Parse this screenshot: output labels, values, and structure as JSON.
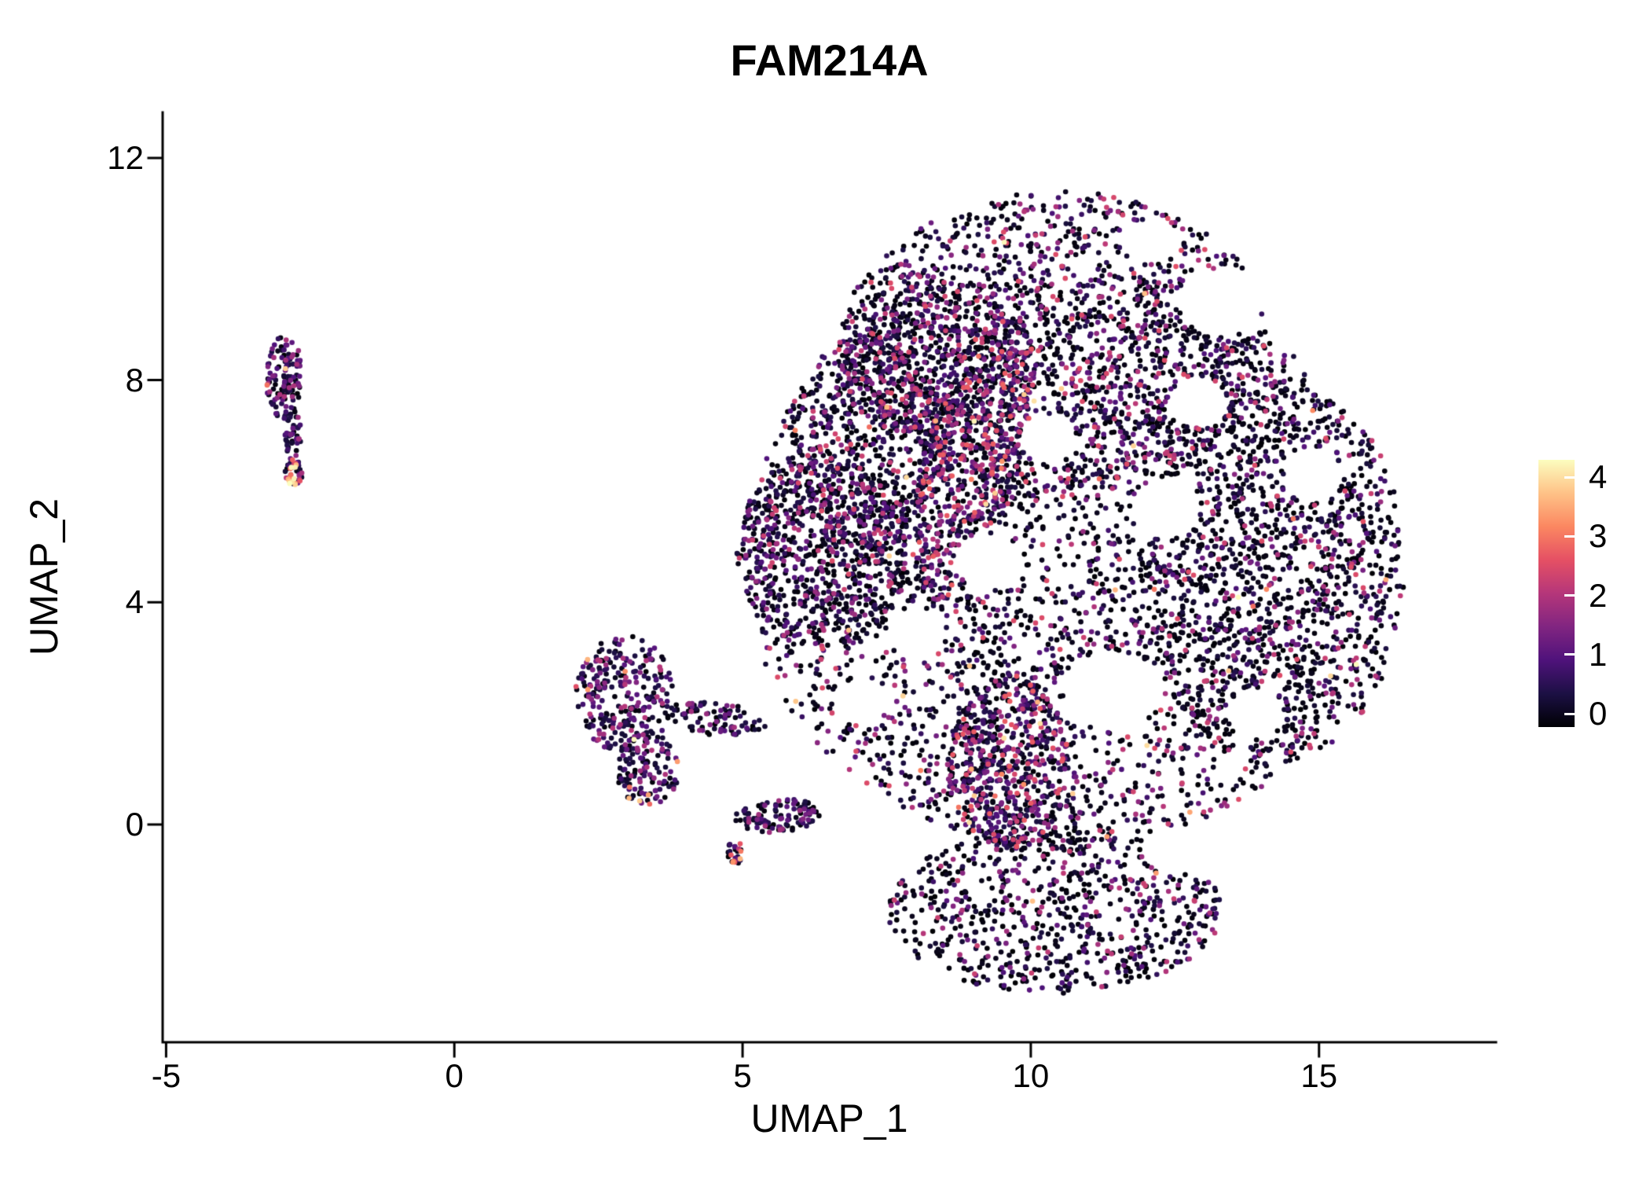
{
  "title": "FAM214A",
  "chart_data": {
    "type": "scatter",
    "title": "FAM214A",
    "xlabel": "UMAP_1",
    "ylabel": "UMAP_2",
    "x_ticks": [
      -5,
      0,
      5,
      10,
      15
    ],
    "y_ticks": [
      12,
      8,
      4,
      0
    ],
    "xlim": [
      -5.06,
      18.07
    ],
    "ylim": [
      -3.92,
      12.82
    ],
    "grid": false,
    "legend_position": "right",
    "point_radius_px": 3.3,
    "seed": 1337,
    "colorbar": {
      "label_values": [
        4,
        3,
        2,
        1,
        0
      ],
      "min": 0,
      "max": 4,
      "palette": "magma",
      "stops": [
        "#000004",
        "#1c1044",
        "#4f127b",
        "#812581",
        "#b5367a",
        "#e55064",
        "#fb8761",
        "#fec287",
        "#fcfdbf"
      ]
    },
    "clusters": [
      {
        "name": "main-core",
        "cx": 10.6,
        "cy": 4.8,
        "rx": 5.6,
        "ry": 5.2,
        "rot": 0,
        "n": 3400,
        "p_zero": 0.52,
        "p_hot": 0.008,
        "vmax": 2.4
      },
      {
        "name": "main-top",
        "cx": 10.5,
        "cy": 8.7,
        "rx": 3.7,
        "ry": 2.7,
        "rot": 0,
        "n": 1350,
        "p_zero": 0.45,
        "p_hot": 0.006,
        "vmax": 2.4
      },
      {
        "name": "main-right",
        "cx": 14.2,
        "cy": 4.6,
        "rx": 2.3,
        "ry": 3.5,
        "rot": 0,
        "n": 950,
        "p_zero": 0.62,
        "p_hot": 0.004,
        "vmax": 2.2
      },
      {
        "name": "main-bottom-lobe",
        "cx": 10.4,
        "cy": -1.55,
        "rx": 2.9,
        "ry": 1.5,
        "rot": 0,
        "n": 750,
        "p_zero": 0.55,
        "p_hot": 0.006,
        "vmax": 2.2
      },
      {
        "name": "main-left-wedge",
        "cx": 6.4,
        "cy": 4.9,
        "rx": 1.5,
        "ry": 1.7,
        "rot": 0,
        "n": 650,
        "p_zero": 0.5,
        "p_hot": 0.004,
        "vmax": 2.2
      },
      {
        "name": "main-diagonal-streak",
        "cx": 9.0,
        "cy": 6.6,
        "rx": 0.85,
        "ry": 2.7,
        "rot": -14,
        "n": 650,
        "p_zero": 0.18,
        "p_hot": 0.015,
        "vmax": 2.6
      },
      {
        "name": "main-lower-band",
        "cx": 9.6,
        "cy": 1.1,
        "rx": 1.05,
        "ry": 1.6,
        "rot": 0,
        "n": 520,
        "p_zero": 0.25,
        "p_hot": 0.02,
        "vmax": 2.6
      },
      {
        "name": "main-left-band",
        "cx": 7.1,
        "cy": 6.9,
        "rx": 1.3,
        "ry": 1.9,
        "rot": 0,
        "n": 380,
        "p_zero": 0.45,
        "p_hot": 0.006,
        "vmax": 2.4
      },
      {
        "name": "main-topleft-arm",
        "cx": 7.9,
        "cy": 8.6,
        "rx": 1.3,
        "ry": 1.5,
        "rot": 0,
        "n": 300,
        "p_zero": 0.42,
        "p_hot": 0.006,
        "vmax": 2.4
      },
      {
        "name": "left-cluster-body",
        "cx": -2.95,
        "cy": 8.05,
        "rx": 0.32,
        "ry": 0.75,
        "rot": 0,
        "n": 120,
        "p_zero": 0.22,
        "p_hot": 0.02,
        "vmax": 1.9
      },
      {
        "name": "left-cluster-tail",
        "cx": -2.8,
        "cy": 7.0,
        "rx": 0.14,
        "ry": 0.45,
        "rot": 0,
        "n": 40,
        "p_zero": 0.25,
        "p_hot": 0.02,
        "vmax": 1.8
      },
      {
        "name": "left-cluster-hotspot",
        "cx": -2.78,
        "cy": 6.33,
        "rx": 0.16,
        "ry": 0.24,
        "rot": 0,
        "n": 45,
        "p_zero": 0.08,
        "p_hot": 0.55,
        "vmax": 2.2
      },
      {
        "name": "mid-cluster",
        "cx": 2.95,
        "cy": 2.35,
        "rx": 0.85,
        "ry": 1.05,
        "rot": 0,
        "n": 260,
        "p_zero": 0.28,
        "p_hot": 0.012,
        "vmax": 2.0
      },
      {
        "name": "mid-cluster-lower",
        "cx": 3.35,
        "cy": 1.0,
        "rx": 0.55,
        "ry": 0.65,
        "rot": 0,
        "n": 130,
        "p_zero": 0.3,
        "p_hot": 0.02,
        "vmax": 2.0
      },
      {
        "name": "mid-arm-upper",
        "cx": 4.55,
        "cy": 1.9,
        "rx": 0.85,
        "ry": 0.3,
        "rot": -8,
        "n": 90,
        "p_zero": 0.4,
        "p_hot": 0.01,
        "vmax": 1.8
      },
      {
        "name": "mid-arm-lower",
        "cx": 5.6,
        "cy": 0.15,
        "rx": 0.75,
        "ry": 0.3,
        "rot": 5,
        "n": 110,
        "p_zero": 0.4,
        "p_hot": 0.01,
        "vmax": 1.8
      },
      {
        "name": "mid-hot-dot",
        "cx": 4.85,
        "cy": -0.5,
        "rx": 0.16,
        "ry": 0.22,
        "rot": 0,
        "n": 25,
        "p_zero": 0.15,
        "p_hot": 0.4,
        "vmax": 2.0
      }
    ],
    "holes": [
      {
        "cx": 11.4,
        "cy": 2.4,
        "rx": 0.85,
        "ry": 0.7
      },
      {
        "cx": 9.25,
        "cy": 4.75,
        "rx": 0.6,
        "ry": 0.5
      },
      {
        "cx": 12.35,
        "cy": 5.7,
        "rx": 0.6,
        "ry": 0.55
      },
      {
        "cx": 13.3,
        "cy": 9.4,
        "rx": 0.75,
        "ry": 0.6
      },
      {
        "cx": 10.3,
        "cy": 6.95,
        "rx": 0.5,
        "ry": 0.45
      },
      {
        "cx": 12.9,
        "cy": 7.6,
        "rx": 0.5,
        "ry": 0.45
      },
      {
        "cx": 8.0,
        "cy": 3.45,
        "rx": 0.5,
        "ry": 0.45
      },
      {
        "cx": 14.9,
        "cy": 6.3,
        "rx": 0.5,
        "ry": 0.5
      },
      {
        "cx": 12.1,
        "cy": 10.5,
        "rx": 0.55,
        "ry": 0.4
      },
      {
        "cx": 12.6,
        "cy": -0.45,
        "rx": 0.7,
        "ry": 0.45
      },
      {
        "cx": 7.0,
        "cy": 2.2,
        "rx": 0.45,
        "ry": 0.4
      },
      {
        "cx": 13.9,
        "cy": 2.0,
        "rx": 0.5,
        "ry": 0.45
      }
    ]
  }
}
